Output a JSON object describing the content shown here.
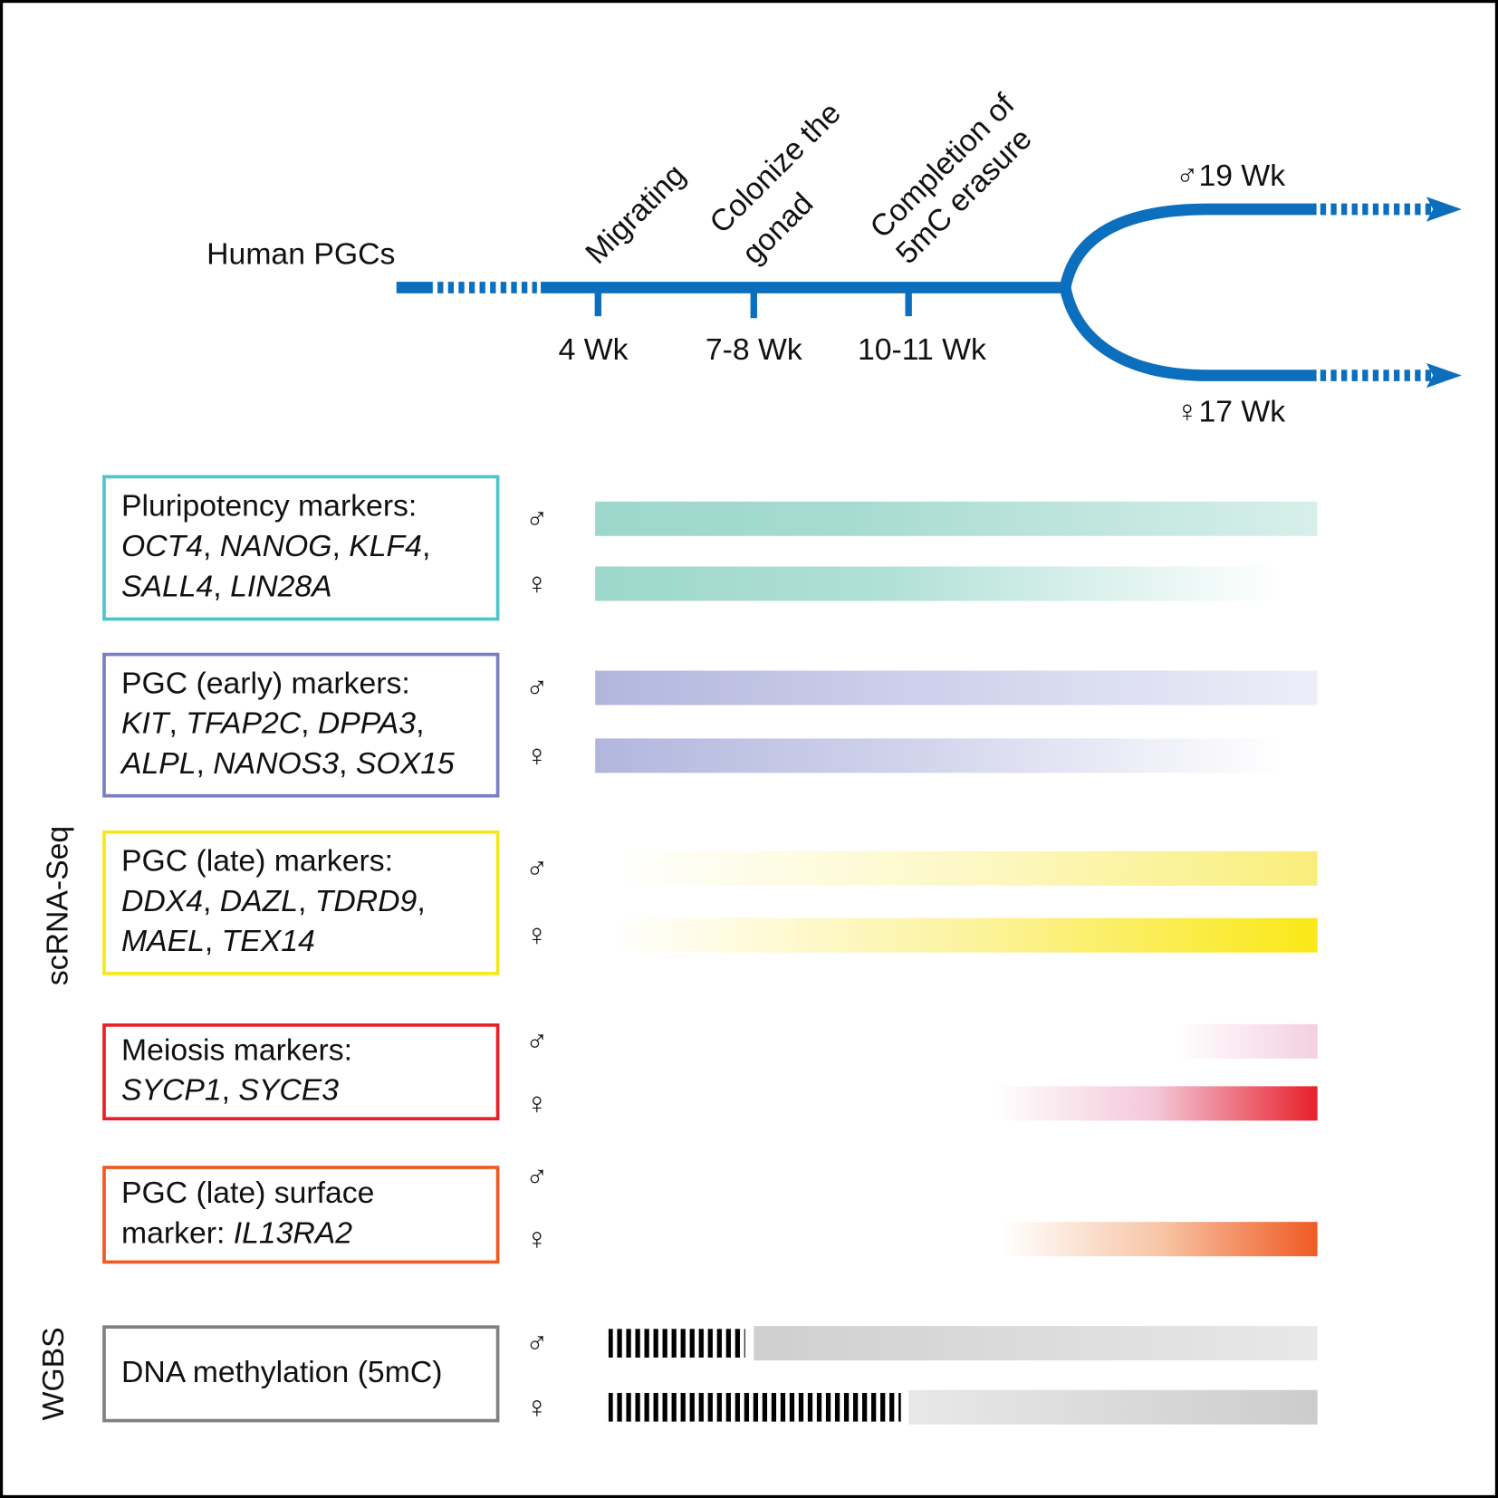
{
  "timeline": {
    "title": "Human PGCs",
    "stages": [
      {
        "label": [
          "Migrating"
        ],
        "week": "4 Wk"
      },
      {
        "label": [
          "Colonize the",
          "gonad"
        ],
        "week": "7-8 Wk"
      },
      {
        "label": [
          "Completion of",
          "5mC erasure"
        ],
        "week": "10-11 Wk"
      }
    ],
    "branches": {
      "male": "♂19 Wk",
      "female": "♀17 Wk"
    }
  },
  "groups": [
    {
      "lines": [
        [
          {
            "text": "Pluripotency markers:"
          }
        ],
        [
          {
            "text": "OCT4",
            "italic": true
          },
          {
            "text": ", "
          },
          {
            "text": "NANOG",
            "italic": true
          },
          {
            "text": ", "
          },
          {
            "text": "KLF4",
            "italic": true
          },
          {
            "text": ","
          }
        ],
        [
          {
            "text": "SALL4",
            "italic": true
          },
          {
            "text": ", "
          },
          {
            "text": "LIN28A",
            "italic": true
          }
        ]
      ],
      "rows": [
        "♂",
        "♀"
      ]
    },
    {
      "lines": [
        [
          {
            "text": "PGC (early) markers:"
          }
        ],
        [
          {
            "text": "KIT",
            "italic": true
          },
          {
            "text": ", "
          },
          {
            "text": "TFAP2C",
            "italic": true
          },
          {
            "text": ", "
          },
          {
            "text": "DPPA3",
            "italic": true
          },
          {
            "text": ","
          }
        ],
        [
          {
            "text": "ALPL",
            "italic": true
          },
          {
            "text": ", "
          },
          {
            "text": "NANOS3",
            "italic": true
          },
          {
            "text": ", "
          },
          {
            "text": "SOX15",
            "italic": true
          }
        ]
      ],
      "rows": [
        "♂",
        "♀"
      ]
    },
    {
      "lines": [
        [
          {
            "text": "PGC (late) markers:"
          }
        ],
        [
          {
            "text": "DDX4",
            "italic": true
          },
          {
            "text": ", "
          },
          {
            "text": "DAZL",
            "italic": true
          },
          {
            "text": ", "
          },
          {
            "text": "TDRD9",
            "italic": true
          },
          {
            "text": ","
          }
        ],
        [
          {
            "text": "MAEL",
            "italic": true
          },
          {
            "text": ", "
          },
          {
            "text": "TEX14",
            "italic": true
          }
        ]
      ],
      "rows": [
        "♂",
        "♀"
      ]
    },
    {
      "lines": [
        [
          {
            "text": "Meiosis markers:"
          }
        ],
        [
          {
            "text": "SYCP1",
            "italic": true
          },
          {
            "text": ", "
          },
          {
            "text": "SYCE3",
            "italic": true
          }
        ]
      ],
      "rows": [
        "♂",
        "♀"
      ]
    },
    {
      "lines": [
        [
          {
            "text": "PGC (late) surface"
          }
        ],
        [
          {
            "text": "marker: "
          },
          {
            "text": "IL13RA2",
            "italic": true
          }
        ]
      ],
      "rows": [
        "♂",
        "♀"
      ]
    },
    {
      "lines": [
        [
          {
            "text": "DNA methylation (5mC)"
          }
        ]
      ],
      "rows": [
        "♂",
        "♀"
      ]
    }
  ],
  "methods": [
    "scRNA-Seq",
    "WGBS"
  ]
}
